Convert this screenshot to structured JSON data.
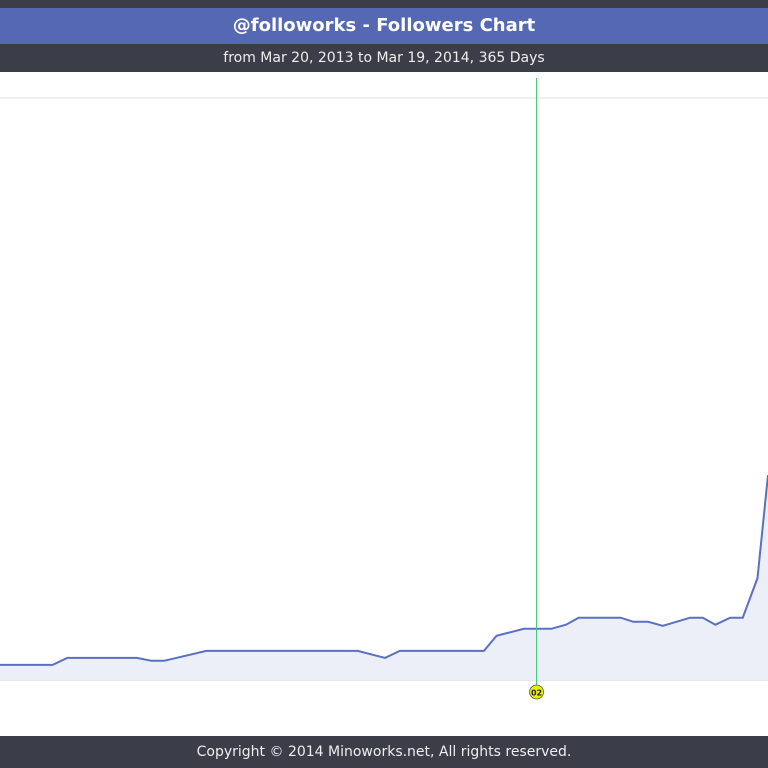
{
  "header": {
    "title": "@followorks - Followers Chart",
    "subtitle": "from Mar 20, 2013 to Mar 19, 2014, 365 Days"
  },
  "chart_data": {
    "type": "line",
    "xlim": [
      0,
      365
    ],
    "ylim": [
      0,
      100
    ],
    "x": [
      0,
      25,
      32,
      65,
      72,
      78,
      98,
      170,
      183,
      190,
      230,
      236,
      249,
      262,
      269,
      275,
      295,
      301,
      308,
      315,
      328,
      334,
      340,
      347,
      353,
      360,
      365
    ],
    "series": [
      {
        "name": "Followers",
        "color": "#5a70c0",
        "values": [
          2.6,
          2.6,
          3.8,
          3.8,
          3.3,
          3.3,
          5.0,
          5.0,
          3.8,
          5.0,
          5.0,
          7.6,
          8.8,
          8.8,
          9.5,
          10.7,
          10.7,
          10.0,
          10.0,
          9.3,
          10.7,
          10.7,
          9.5,
          10.7,
          10.7,
          17.5,
          35.2
        ]
      }
    ],
    "markers": [
      {
        "x": 255,
        "label": "02",
        "color": "#e8f000"
      }
    ]
  },
  "footer": {
    "text": "Copyright © 2014 Minoworks.net, All rights reserved."
  }
}
